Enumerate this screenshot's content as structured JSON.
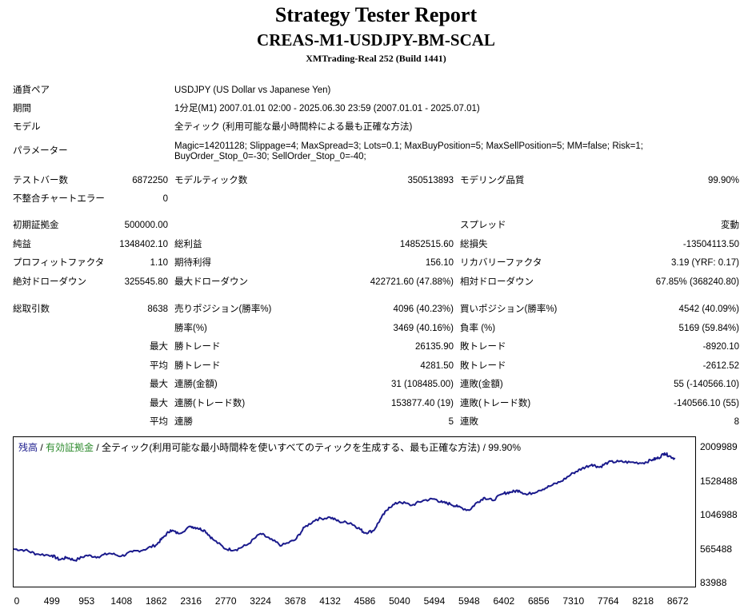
{
  "header": {
    "title": "Strategy Tester Report",
    "ea_name": "CREAS-M1-USDJPY-BM-SCAL",
    "server": "XMTrading-Real 252 (Build 1441)"
  },
  "settings": {
    "symbol_label": "通貨ペア",
    "symbol_value": "USDJPY (US Dollar vs Japanese Yen)",
    "period_label": "期間",
    "period_value": "1分足(M1) 2007.01.01 02:00 - 2025.06.30 23:59 (2007.01.01 - 2025.07.01)",
    "model_label": "モデル",
    "model_value": "全ティック (利用可能な最小時間枠による最も正確な方法)",
    "params_label": "パラメーター",
    "params_line1": "Magic=14201128; Slippage=4; MaxSpread=3; Lots=0.1; MaxBuyPosition=5; MaxSellPosition=5; MM=false; Risk=1;",
    "params_line2": "BuyOrder_Stop_0=-30; SellOrder_Stop_0=-40;"
  },
  "stats": {
    "bars_label": "テストバー数",
    "bars_value": "6872250",
    "ticks_label": "モデルティック数",
    "ticks_value": "350513893",
    "quality_label": "モデリング品質",
    "quality_value": "99.90%",
    "mismatch_label": "不整合チャートエラー",
    "mismatch_value": "0",
    "deposit_label": "初期証拠金",
    "deposit_value": "500000.00",
    "spread_label": "スプレッド",
    "spread_value": "変動",
    "net_label": "純益",
    "net_value": "1348402.10",
    "gross_profit_label": "総利益",
    "gross_profit_value": "14852515.60",
    "gross_loss_label": "総損失",
    "gross_loss_value": "-13504113.50",
    "pf_label": "プロフィットファクタ",
    "pf_value": "1.10",
    "expected_label": "期待利得",
    "expected_value": "156.10",
    "recovery_label": "リカバリーファクタ",
    "recovery_value": "3.19 (YRF: 0.17)",
    "abs_dd_label": "絶対ドローダウン",
    "abs_dd_value": "325545.80",
    "max_dd_label": "最大ドローダウン",
    "max_dd_value": "422721.60 (47.88%)",
    "rel_dd_label": "相対ドローダウン",
    "rel_dd_value": "67.85% (368240.80)",
    "trades_label": "総取引数",
    "trades_value": "8638",
    "short_label": "売りポジション(勝率%)",
    "short_value": "4096 (40.23%)",
    "long_label": "買いポジション(勝率%)",
    "long_value": "4542 (40.09%)",
    "winrate_label": "勝率(%)",
    "winrate_value": "3469 (40.16%)",
    "lossrate_label": "負率 (%)",
    "lossrate_value": "5169 (59.84%)",
    "largest_prefix": "最大",
    "largest_win_label": "勝トレード",
    "largest_win_value": "26135.90",
    "largest_loss_label": "敗トレード",
    "largest_loss_value": "-8920.10",
    "average_prefix": "平均",
    "avg_win_label": "勝トレード",
    "avg_win_value": "4281.50",
    "avg_loss_label": "敗トレード",
    "avg_loss_value": "-2612.52",
    "max_prefix1": "最大",
    "max_cons_wins_label": "連勝(金額)",
    "max_cons_wins_value": "31 (108485.00)",
    "max_cons_losses_label": "連敗(金額)",
    "max_cons_losses_value": "55 (-140566.10)",
    "max_prefix2": "最大",
    "max_cons_profit_label": "連勝(トレード数)",
    "max_cons_profit_value": "153877.40 (19)",
    "max_cons_loss_label": "連敗(トレード数)",
    "max_cons_loss_value": "-140566.10 (55)",
    "avg_prefix2": "平均",
    "avg_cons_wins_label": "連勝",
    "avg_cons_wins_value": "5",
    "avg_cons_losses_label": "連敗",
    "avg_cons_losses_value": "8"
  },
  "chart_legend": {
    "balance": "残高",
    "sep1": " / ",
    "equity": "有効証拠金",
    "rest": " / 全ティック(利用可能な最小時間枠を使いすべてのティックを生成する、最も正確な方法) / 99.90%"
  },
  "chart_data": {
    "type": "line",
    "series": [
      {
        "name": "残高",
        "color": "#1a1a8c",
        "x": [
          0,
          150,
          300,
          499,
          600,
          700,
          800,
          953,
          1100,
          1250,
          1408,
          1550,
          1700,
          1862,
          1950,
          2050,
          2150,
          2316,
          2400,
          2500,
          2600,
          2770,
          2900,
          3050,
          3224,
          3350,
          3500,
          3678,
          3800,
          3950,
          4132,
          4250,
          4400,
          4500,
          4586,
          4700,
          4800,
          4900,
          5040,
          5200,
          5350,
          5494,
          5600,
          5700,
          5800,
          5948,
          6050,
          6150,
          6250,
          6402,
          6500,
          6600,
          6700,
          6856,
          7000,
          7150,
          7310,
          7420,
          7550,
          7650,
          7764,
          7900,
          8050,
          8218,
          8350,
          8420,
          8500,
          8560,
          8638
        ],
        "values": [
          560000,
          545000,
          490000,
          470000,
          410000,
          440000,
          400000,
          470000,
          450000,
          500000,
          460000,
          520000,
          550000,
          620000,
          720000,
          830000,
          780000,
          880000,
          860000,
          820000,
          700000,
          560000,
          550000,
          620000,
          780000,
          700000,
          610000,
          690000,
          870000,
          980000,
          1010000,
          950000,
          930000,
          860000,
          790000,
          820000,
          1000000,
          1150000,
          1230000,
          1180000,
          1250000,
          1270000,
          1220000,
          1200000,
          1160000,
          1110000,
          1220000,
          1290000,
          1250000,
          1350000,
          1370000,
          1390000,
          1330000,
          1390000,
          1450000,
          1520000,
          1640000,
          1700000,
          1760000,
          1720000,
          1790000,
          1800000,
          1790000,
          1780000,
          1830000,
          1850000,
          1920000,
          1880000,
          1840000
        ]
      }
    ],
    "x_ticks": [
      "0",
      "499",
      "953",
      "1408",
      "1862",
      "2316",
      "2770",
      "3224",
      "3678",
      "4132",
      "4586",
      "5040",
      "5494",
      "5948",
      "6402",
      "6856",
      "7310",
      "7764",
      "8218",
      "8672"
    ],
    "y_ticks": [
      "2009989",
      "1528488",
      "1046988",
      "565488",
      "83988"
    ],
    "xlim": [
      0,
      8900
    ],
    "ylim": [
      83988,
      2009989
    ]
  }
}
